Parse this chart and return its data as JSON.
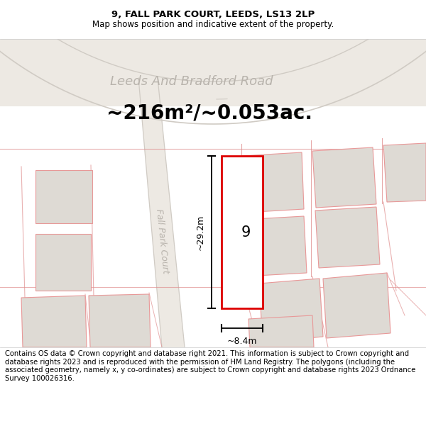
{
  "title_line1": "9, FALL PARK COURT, LEEDS, LS13 2LP",
  "title_line2": "Map shows position and indicative extent of the property.",
  "area_text": "~216m²/~0.053ac.",
  "road_label": "Leeds And Bradford Road",
  "street_label": "Fall Park Court",
  "plot_number": "9",
  "dim_height": "~29.2m",
  "dim_width": "~8.4m",
  "map_bg": "#f2eeea",
  "road_bg": "#e8e4de",
  "plot_fill": "#ffffff",
  "plot_edge": "#dd0000",
  "neighbor_fill": "#dedad4",
  "neighbor_edge": "#e89898",
  "road_line": "#d0cbc4",
  "pink_line": "#e09090",
  "title_fontsize": 9.5,
  "subtitle_fontsize": 8.5,
  "area_fontsize": 20,
  "road_label_fontsize": 13,
  "street_label_fontsize": 9,
  "plot_num_fontsize": 15,
  "dim_fontsize": 9,
  "footer_fontsize": 7.2,
  "footer_text": "Contains OS data © Crown copyright and database right 2021. This information is subject to Crown copyright and database rights 2023 and is reproduced with the permission of HM Land Registry. The polygons (including the associated geometry, namely x, y co-ordinates) are subject to Crown copyright and database rights 2023 Ordnance Survey 100026316."
}
